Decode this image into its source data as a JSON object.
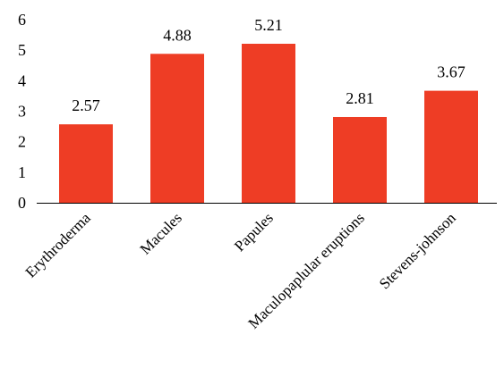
{
  "chart_data": {
    "type": "bar",
    "title": "",
    "xlabel": "",
    "ylabel": "",
    "categories": [
      "Erythroderma",
      "Macules",
      "Papules",
      "Maculopaplular eruptions",
      "Stevens-johnson"
    ],
    "values": [
      2.57,
      4.88,
      5.21,
      2.81,
      3.67
    ],
    "value_labels": [
      "2.57",
      "4.88",
      "5.21",
      "2.81",
      "3.67"
    ],
    "ylim": [
      0,
      6
    ],
    "y_ticks": [
      "0",
      "1",
      "2",
      "3",
      "4",
      "5",
      "6"
    ],
    "grid": false,
    "legend": "none",
    "bar_color": "#ee3d25",
    "axis_color": "#000000"
  }
}
